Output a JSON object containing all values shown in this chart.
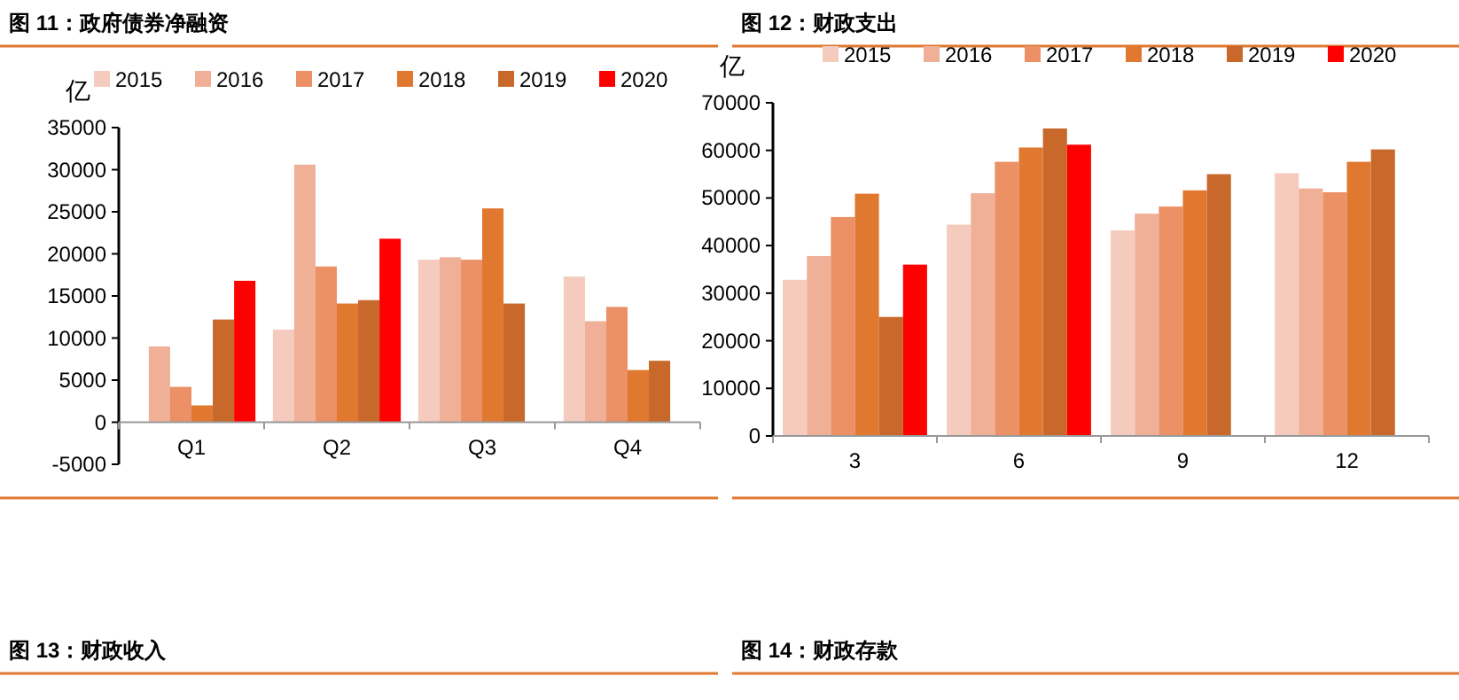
{
  "chart_data": [
    {
      "type": "bar",
      "title": "图 11：政府债券净融资",
      "ylabel": "亿",
      "categories": [
        "Q1",
        "Q2",
        "Q3",
        "Q4"
      ],
      "ylim": [
        -5000,
        35000
      ],
      "yticks": [
        -5000,
        0,
        5000,
        10000,
        15000,
        20000,
        25000,
        30000,
        35000
      ],
      "legend": "top",
      "annotations": [
        "图 13：财政收入"
      ],
      "series": [
        {
          "name": "2015",
          "color": "#f4cbbd",
          "values": [
            null,
            11000,
            19300,
            17300
          ]
        },
        {
          "name": "2016",
          "color": "#f0b098",
          "values": [
            9000,
            30600,
            19600,
            12000
          ]
        },
        {
          "name": "2017",
          "color": "#ec9066",
          "values": [
            4200,
            18500,
            19300,
            13700
          ]
        },
        {
          "name": "2018",
          "color": "#e07830",
          "values": [
            2000,
            14100,
            25400,
            6200
          ]
        },
        {
          "name": "2019",
          "color": "#c8682a",
          "values": [
            12200,
            14500,
            14100,
            7300
          ]
        },
        {
          "name": "2020",
          "color": "#ff0000",
          "values": [
            16800,
            21800,
            null,
            null
          ]
        }
      ]
    },
    {
      "type": "bar",
      "title": "图 12：财政支出",
      "ylabel": "亿",
      "categories": [
        "3",
        "6",
        "9",
        "12"
      ],
      "ylim": [
        0,
        70000
      ],
      "yticks": [
        0,
        10000,
        20000,
        30000,
        40000,
        50000,
        60000,
        70000
      ],
      "legend": "top",
      "annotations": [
        "图 14：财政存款"
      ],
      "series": [
        {
          "name": "2015",
          "color": "#f4cbbd",
          "values": [
            32800,
            44400,
            43200,
            55200
          ]
        },
        {
          "name": "2016",
          "color": "#f0b098",
          "values": [
            37800,
            51000,
            46700,
            52000
          ]
        },
        {
          "name": "2017",
          "color": "#ec9066",
          "values": [
            46000,
            57600,
            48200,
            51200
          ]
        },
        {
          "name": "2018",
          "color": "#e07830",
          "values": [
            50900,
            60600,
            51600,
            57600
          ]
        },
        {
          "name": "2019",
          "color": "#c8682a",
          "values": [
            25000,
            64600,
            55000,
            60200
          ]
        },
        {
          "name": "2020",
          "color": "#ff0000",
          "values": [
            36000,
            61200,
            null,
            null
          ]
        }
      ]
    }
  ]
}
